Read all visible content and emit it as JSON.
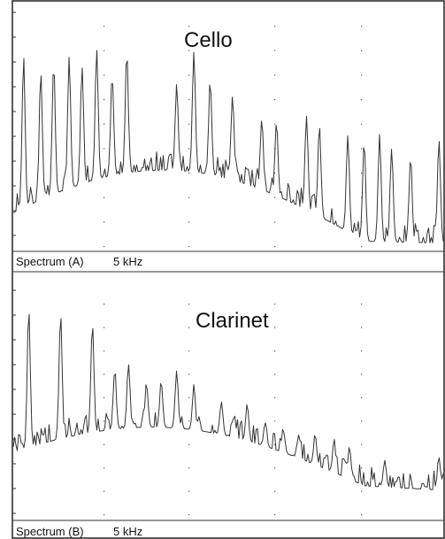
{
  "chart_data": [
    {
      "type": "line",
      "title": "Cello",
      "footer_label": "Spectrum (A)",
      "footer_scale": "5 kHz",
      "grid": true,
      "x_range": [
        0,
        5
      ],
      "harmonics": [
        {
          "x": 0.12,
          "y": 0.78
        },
        {
          "x": 0.32,
          "y": 0.72
        },
        {
          "x": 0.47,
          "y": 0.76
        },
        {
          "x": 0.65,
          "y": 0.78
        },
        {
          "x": 0.8,
          "y": 0.75
        },
        {
          "x": 0.97,
          "y": 0.81
        },
        {
          "x": 1.15,
          "y": 0.71
        },
        {
          "x": 1.32,
          "y": 0.8
        },
        {
          "x": 1.9,
          "y": 0.67
        },
        {
          "x": 2.1,
          "y": 0.8
        },
        {
          "x": 2.29,
          "y": 0.69
        },
        {
          "x": 2.55,
          "y": 0.63
        },
        {
          "x": 2.89,
          "y": 0.54
        },
        {
          "x": 3.06,
          "y": 0.52
        },
        {
          "x": 3.41,
          "y": 0.55
        },
        {
          "x": 3.56,
          "y": 0.5
        },
        {
          "x": 3.89,
          "y": 0.47
        },
        {
          "x": 4.08,
          "y": 0.44
        },
        {
          "x": 4.26,
          "y": 0.47
        },
        {
          "x": 4.4,
          "y": 0.42
        },
        {
          "x": 4.62,
          "y": 0.38
        },
        {
          "x": 4.95,
          "y": 0.45
        }
      ]
    },
    {
      "type": "line",
      "title": "Clarinet",
      "footer_label": "Spectrum (B)",
      "footer_scale": "5 kHz",
      "grid": true,
      "x_range": [
        0,
        5
      ],
      "harmonics": [
        {
          "x": 0.18,
          "y": 0.88
        },
        {
          "x": 0.55,
          "y": 0.86
        },
        {
          "x": 0.92,
          "y": 0.82
        },
        {
          "x": 1.18,
          "y": 0.63
        },
        {
          "x": 1.34,
          "y": 0.66
        },
        {
          "x": 1.55,
          "y": 0.57
        },
        {
          "x": 1.72,
          "y": 0.58
        },
        {
          "x": 1.9,
          "y": 0.62
        },
        {
          "x": 2.1,
          "y": 0.56
        },
        {
          "x": 2.42,
          "y": 0.5
        },
        {
          "x": 2.57,
          "y": 0.43
        },
        {
          "x": 2.72,
          "y": 0.48
        },
        {
          "x": 2.93,
          "y": 0.41
        },
        {
          "x": 3.14,
          "y": 0.38
        },
        {
          "x": 3.32,
          "y": 0.36
        },
        {
          "x": 3.51,
          "y": 0.35
        },
        {
          "x": 3.73,
          "y": 0.33
        },
        {
          "x": 3.91,
          "y": 0.3
        },
        {
          "x": 4.32,
          "y": 0.25
        },
        {
          "x": 4.95,
          "y": 0.26
        }
      ]
    }
  ]
}
